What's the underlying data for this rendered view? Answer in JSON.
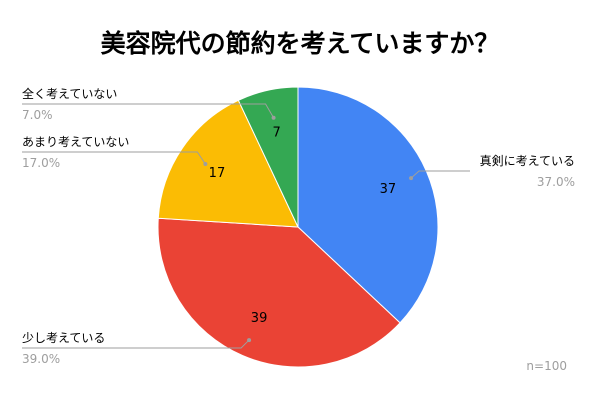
{
  "chart_data": {
    "type": "pie",
    "title": "美容院代の節約を考えていますか？",
    "start_angle_deg": 0,
    "direction": "clockwise",
    "slices": [
      {
        "label": "真剣に考えている",
        "value": 37,
        "percent_label": "37.0%",
        "color": "#4285f4",
        "value_label": "37"
      },
      {
        "label": "少し考えている",
        "value": 39,
        "percent_label": "39.0%",
        "color": "#ea4335",
        "value_label": "39"
      },
      {
        "label": "あまり考えていない",
        "value": 17,
        "percent_label": "17.0%",
        "color": "#fbbc04",
        "value_label": "17"
      },
      {
        "label": "全く考えていない",
        "value": 7,
        "percent_label": "7.0%",
        "color": "#34a853",
        "value_label": "7"
      }
    ],
    "annotation": "n=100"
  }
}
